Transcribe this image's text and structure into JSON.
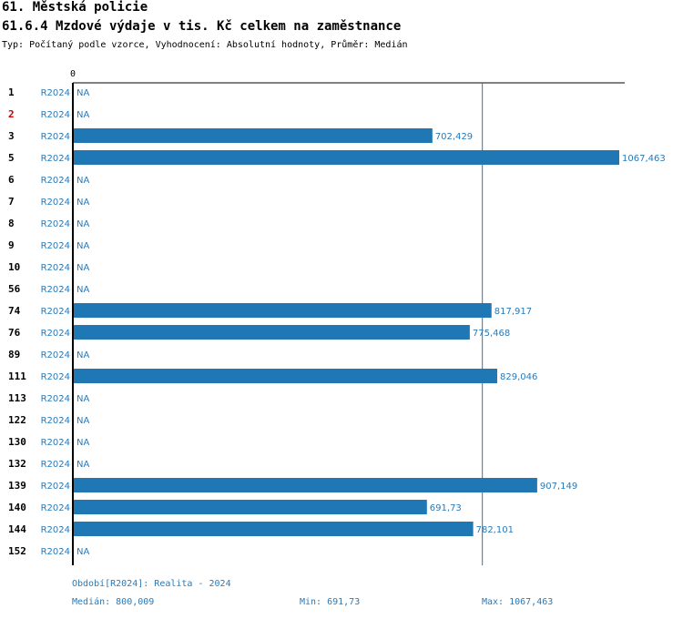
{
  "header": {
    "title": "61. Městská policie",
    "subtitle": "61.6.4 Mzdové výdaje v tis. Kč celkem na zaměstnance",
    "description": "Typ: Počítaný podle vzorce, Vyhodnocení: Absolutní hodnoty, Průměr: Medián"
  },
  "colors": {
    "bar": "#1f77b4",
    "label": "#2a7ab8",
    "highlight_id": "#cc0000",
    "axis": "#000000"
  },
  "chart_data": {
    "type": "bar",
    "orientation": "horizontal",
    "axis_zero_label": "0",
    "na_label": "NA",
    "series_label": "R2024",
    "xlim": [
      0,
      1067.463
    ],
    "median": 800.009,
    "rows": [
      {
        "id": "1",
        "period": "R2024",
        "value": null,
        "label": "NA",
        "highlight": false
      },
      {
        "id": "2",
        "period": "R2024",
        "value": null,
        "label": "NA",
        "highlight": true
      },
      {
        "id": "3",
        "period": "R2024",
        "value": 702.429,
        "label": "702,429",
        "highlight": false
      },
      {
        "id": "5",
        "period": "R2024",
        "value": 1067.463,
        "label": "1067,463",
        "highlight": false
      },
      {
        "id": "6",
        "period": "R2024",
        "value": null,
        "label": "NA",
        "highlight": false
      },
      {
        "id": "7",
        "period": "R2024",
        "value": null,
        "label": "NA",
        "highlight": false
      },
      {
        "id": "8",
        "period": "R2024",
        "value": null,
        "label": "NA",
        "highlight": false
      },
      {
        "id": "9",
        "period": "R2024",
        "value": null,
        "label": "NA",
        "highlight": false
      },
      {
        "id": "10",
        "period": "R2024",
        "value": null,
        "label": "NA",
        "highlight": false
      },
      {
        "id": "56",
        "period": "R2024",
        "value": null,
        "label": "NA",
        "highlight": false
      },
      {
        "id": "74",
        "period": "R2024",
        "value": 817.917,
        "label": "817,917",
        "highlight": false
      },
      {
        "id": "76",
        "period": "R2024",
        "value": 775.468,
        "label": "775,468",
        "highlight": false
      },
      {
        "id": "89",
        "period": "R2024",
        "value": null,
        "label": "NA",
        "highlight": false
      },
      {
        "id": "111",
        "period": "R2024",
        "value": 829.046,
        "label": "829,046",
        "highlight": false
      },
      {
        "id": "113",
        "period": "R2024",
        "value": null,
        "label": "NA",
        "highlight": false
      },
      {
        "id": "122",
        "period": "R2024",
        "value": null,
        "label": "NA",
        "highlight": false
      },
      {
        "id": "130",
        "period": "R2024",
        "value": null,
        "label": "NA",
        "highlight": false
      },
      {
        "id": "132",
        "period": "R2024",
        "value": null,
        "label": "NA",
        "highlight": false
      },
      {
        "id": "139",
        "period": "R2024",
        "value": 907.149,
        "label": "907,149",
        "highlight": false
      },
      {
        "id": "140",
        "period": "R2024",
        "value": 691.73,
        "label": "691,73",
        "highlight": false
      },
      {
        "id": "144",
        "period": "R2024",
        "value": 782.101,
        "label": "782,101",
        "highlight": false
      },
      {
        "id": "152",
        "period": "R2024",
        "value": null,
        "label": "NA",
        "highlight": false
      }
    ]
  },
  "footer": {
    "period": "Období[R2024]: Realita - 2024",
    "median": "Medián: 800,009",
    "min": "Min: 691,73",
    "max": "Max: 1067,463"
  }
}
